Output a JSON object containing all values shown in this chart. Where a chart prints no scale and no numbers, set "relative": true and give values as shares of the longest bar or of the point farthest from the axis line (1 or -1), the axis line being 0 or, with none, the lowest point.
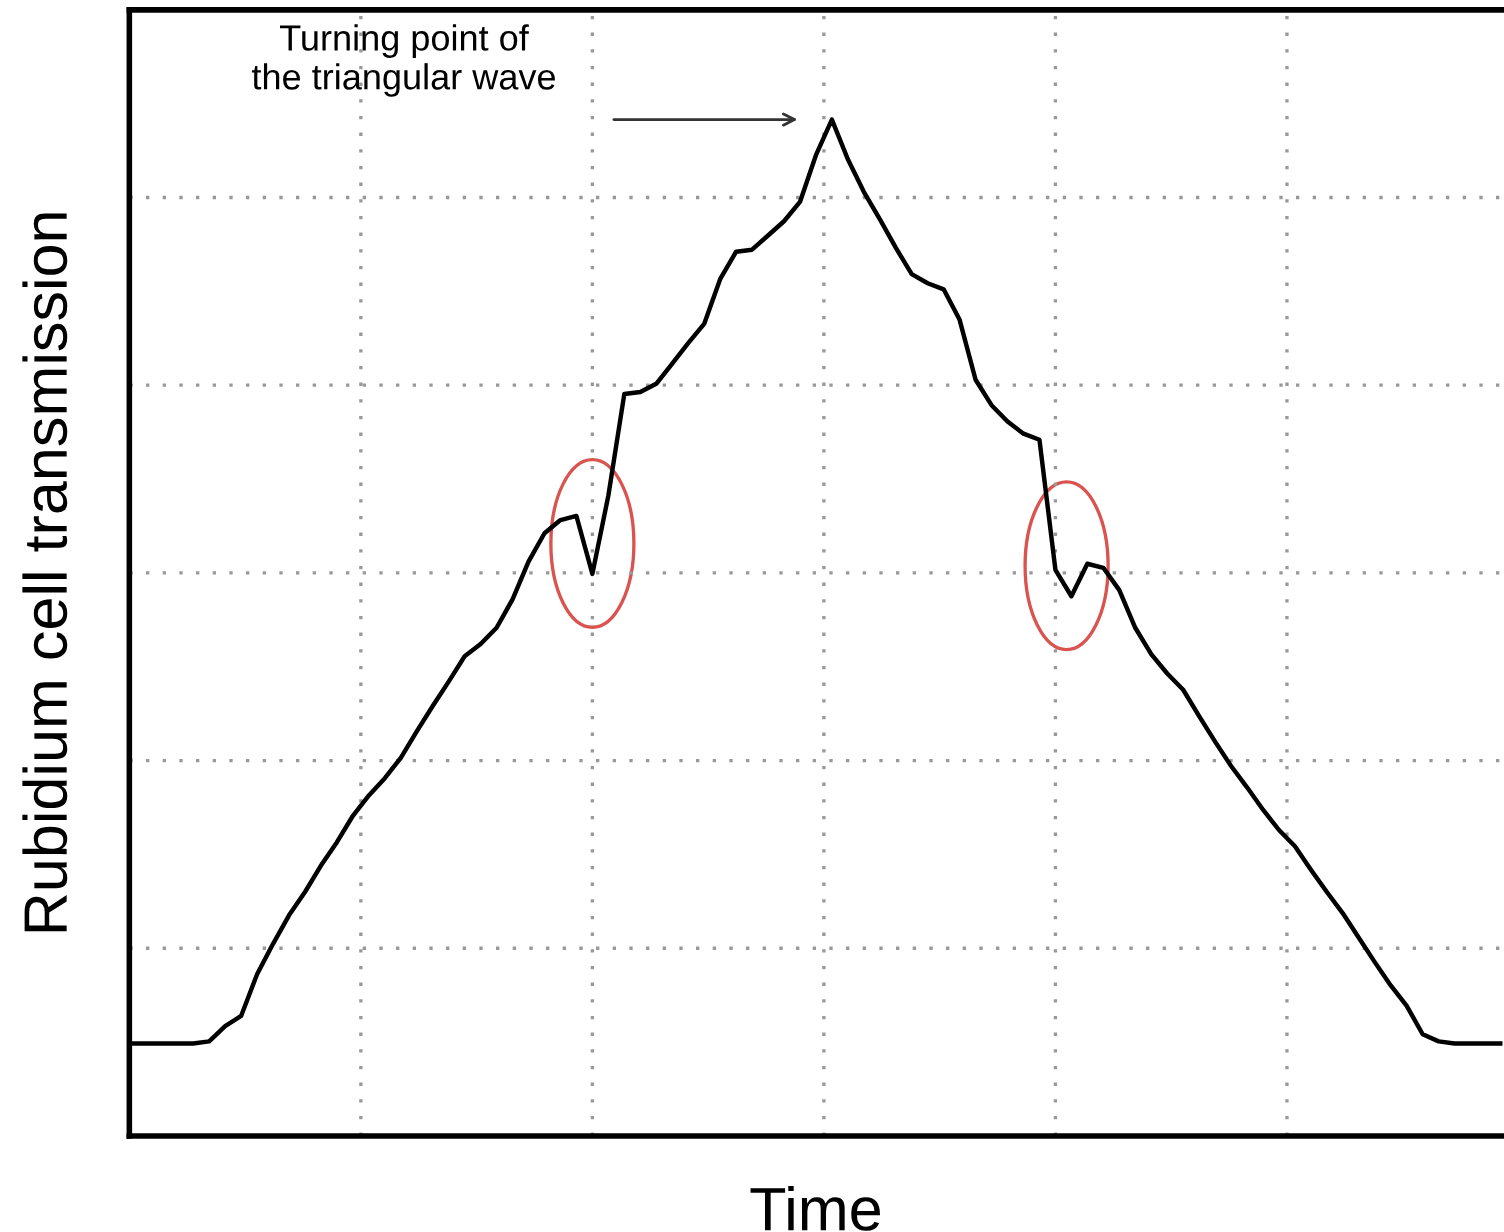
{
  "chart_data": {
    "type": "line",
    "relative": true,
    "xlabel": "Time",
    "ylabel": "Rubidium cell transmission",
    "color": "#000000",
    "grid": true,
    "tick_labels": false,
    "annotations": [
      "Turning point of\nthe triangular wave"
    ],
    "categories": [
      null,
      null,
      null,
      null,
      null,
      null,
      null,
      null,
      null,
      null,
      null,
      null,
      null,
      null,
      null,
      null,
      null,
      null,
      null,
      null,
      null,
      null,
      null,
      null,
      null,
      null,
      null,
      null,
      null,
      null,
      null,
      null,
      null,
      null,
      null,
      null,
      null,
      null,
      null,
      null,
      null,
      null,
      null,
      null,
      null,
      null,
      null,
      null,
      null,
      null,
      null,
      null,
      null,
      null,
      null,
      null,
      null,
      null,
      null,
      null,
      null,
      null,
      null,
      null,
      null,
      null,
      null,
      null,
      null,
      null,
      null,
      null,
      null,
      null,
      null,
      null,
      null,
      null,
      null,
      null,
      null,
      null,
      null,
      null,
      null,
      null,
      null
    ],
    "values": [
      0.091,
      0.091,
      0.091,
      0.091,
      0.091,
      0.093,
      0.108,
      0.118,
      0.159,
      0.189,
      0.217,
      0.24,
      0.266,
      0.289,
      0.315,
      0.335,
      0.352,
      0.372,
      0.398,
      0.423,
      0.447,
      0.472,
      0.484,
      0.5,
      0.528,
      0.565,
      0.593,
      0.606,
      0.61,
      0.553,
      0.63,
      0.73,
      0.732,
      0.74,
      0.76,
      0.78,
      0.799,
      0.843,
      0.87,
      0.872,
      0.886,
      0.9,
      0.919,
      0.965,
      1.0,
      0.961,
      0.929,
      0.902,
      0.874,
      0.848,
      0.839,
      0.833,
      0.803,
      0.744,
      0.719,
      0.703,
      0.691,
      0.685,
      0.557,
      0.531,
      0.563,
      0.559,
      0.537,
      0.5,
      0.474,
      0.455,
      0.439,
      0.413,
      0.388,
      0.364,
      0.343,
      0.321,
      0.301,
      0.285,
      0.262,
      0.24,
      0.219,
      0.195,
      0.171,
      0.148,
      0.128,
      0.1,
      0.093,
      0.091,
      0.091,
      0.091,
      0.091
    ]
  }
}
